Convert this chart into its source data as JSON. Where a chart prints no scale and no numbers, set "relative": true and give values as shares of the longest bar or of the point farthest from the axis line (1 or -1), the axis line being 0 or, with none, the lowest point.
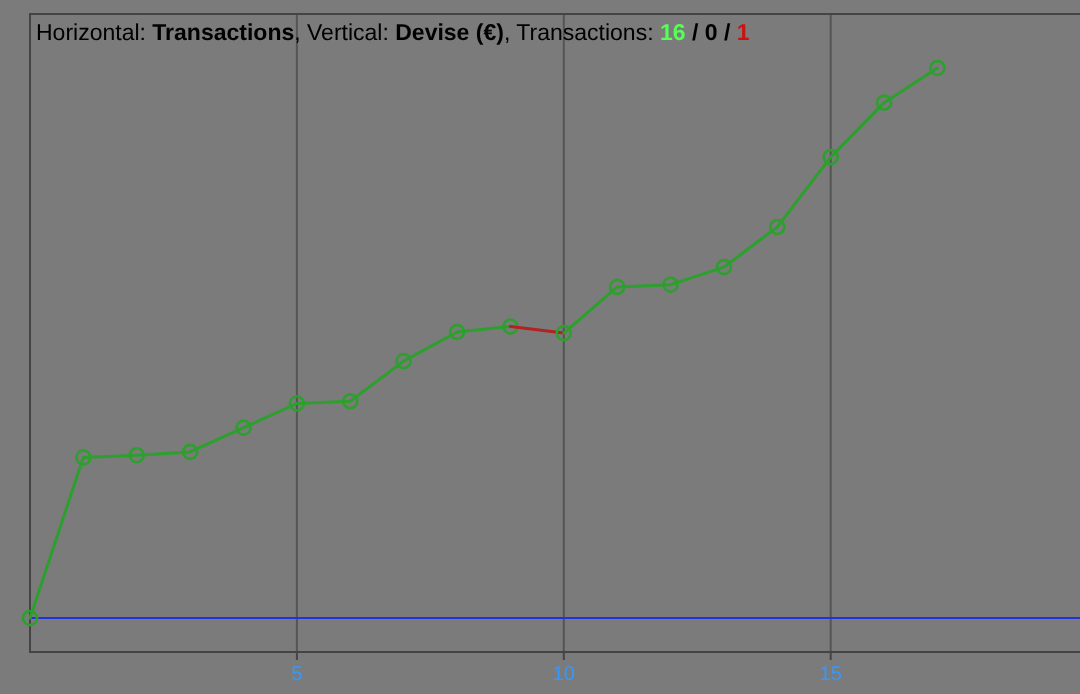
{
  "chart_data": {
    "type": "line",
    "title": "Horizontal: Transactions, Vertical: Devise (€), Transactions: 16 / 0 / 1",
    "relative": true,
    "xlim": [
      0,
      19.67
    ],
    "xticks": [
      5,
      10,
      15
    ],
    "grid": "x",
    "tick_labels": "x",
    "line_style": "solid",
    "series": [
      {
        "color": "#2ca02c",
        "marker": "circle",
        "x": [
          0,
          1,
          2,
          3,
          4,
          5,
          6,
          7,
          8,
          9
        ],
        "values": [
          0,
          0.292,
          0.296,
          0.302,
          0.346,
          0.39,
          0.394,
          0.467,
          0.52,
          0.53
        ]
      },
      {
        "color": "#b22222",
        "marker": "none",
        "x": [
          9,
          10
        ],
        "values": [
          0.53,
          0.518
        ]
      },
      {
        "color": "#2ca02c",
        "marker": "circle",
        "x": [
          10,
          11,
          12,
          13,
          14,
          15,
          16,
          17
        ],
        "values": [
          0.518,
          0.602,
          0.606,
          0.638,
          0.711,
          0.838,
          0.937,
          1
        ]
      }
    ]
  }
}
